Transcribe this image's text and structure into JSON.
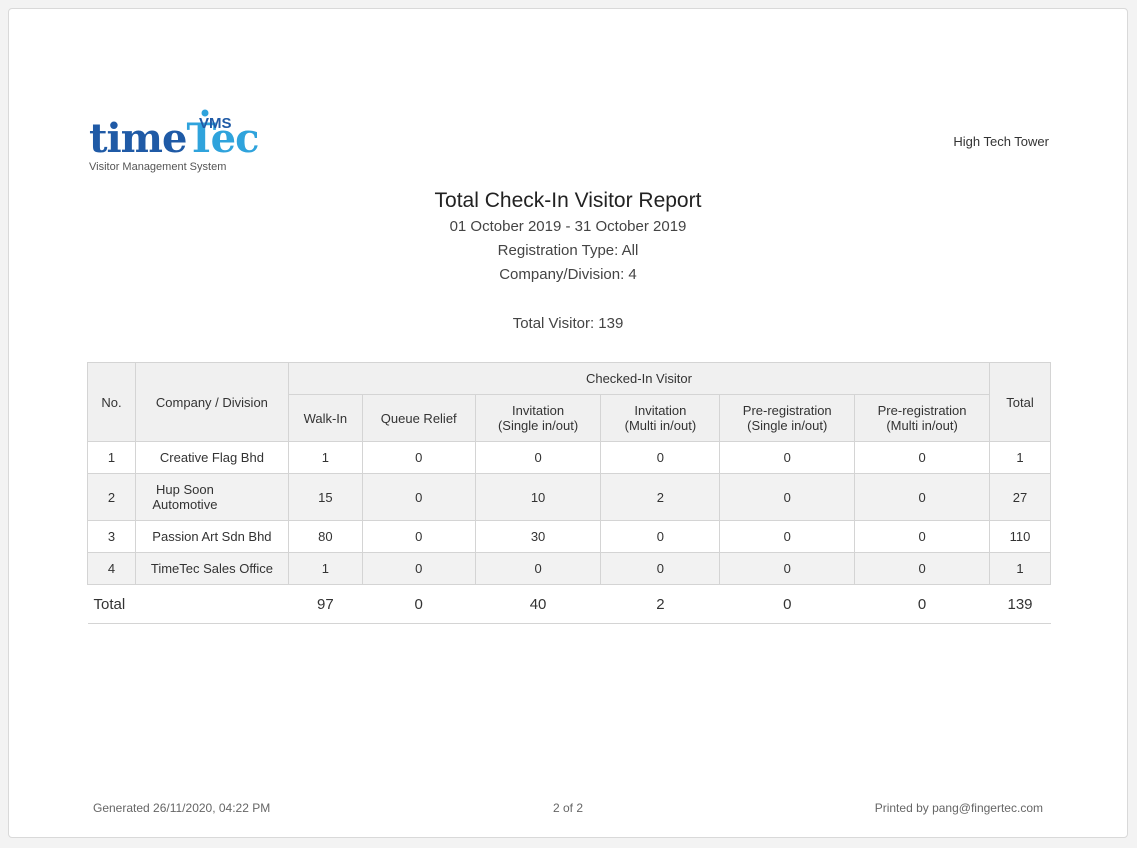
{
  "logo": {
    "word_part1": "time",
    "word_part2": "Tec",
    "product": "VMS",
    "subtitle": "Visitor Management System",
    "colors": {
      "dark": "#1f5aa6",
      "light": "#2fa3dc"
    }
  },
  "site_name": "High Tech Tower",
  "report": {
    "title": "Total Check-In Visitor Report",
    "date_range": "01 October 2019 - 31 October 2019",
    "registration_type": "Registration Type: All",
    "company_division": "Company/Division: 4",
    "total_visitor": "Total Visitor: 139"
  },
  "table": {
    "headers": {
      "no": "No.",
      "company": "Company / Division",
      "group": "Checked-In Visitor",
      "total": "Total",
      "sub": [
        [
          "Walk-In"
        ],
        [
          "Queue Relief"
        ],
        [
          "Invitation",
          "(Single in/out)"
        ],
        [
          "Invitation",
          "(Multi in/out)"
        ],
        [
          "Pre-registration",
          "(Single in/out)"
        ],
        [
          "Pre-registration",
          "(Multi in/out)"
        ]
      ]
    },
    "rows": [
      {
        "no": "1",
        "company": "Creative Flag Bhd",
        "values": [
          "1",
          "0",
          "0",
          "0",
          "0",
          "0"
        ],
        "total": "1"
      },
      {
        "no": "2",
        "company": "Hup Soon Automotive",
        "values": [
          "15",
          "0",
          "10",
          "2",
          "0",
          "0"
        ],
        "total": "27"
      },
      {
        "no": "3",
        "company": "Passion Art Sdn Bhd",
        "values": [
          "80",
          "0",
          "30",
          "0",
          "0",
          "0"
        ],
        "total": "110"
      },
      {
        "no": "4",
        "company": "TimeTec Sales Office",
        "values": [
          "1",
          "0",
          "0",
          "0",
          "0",
          "0"
        ],
        "total": "1"
      }
    ],
    "totals": {
      "label": "Total",
      "values": [
        "97",
        "0",
        "40",
        "2",
        "0",
        "0"
      ],
      "total": "139"
    }
  },
  "footer": {
    "generated": "Generated 26/11/2020, 04:22 PM",
    "page": "2 of 2",
    "printed_by": "Printed by pang@fingertec.com"
  }
}
